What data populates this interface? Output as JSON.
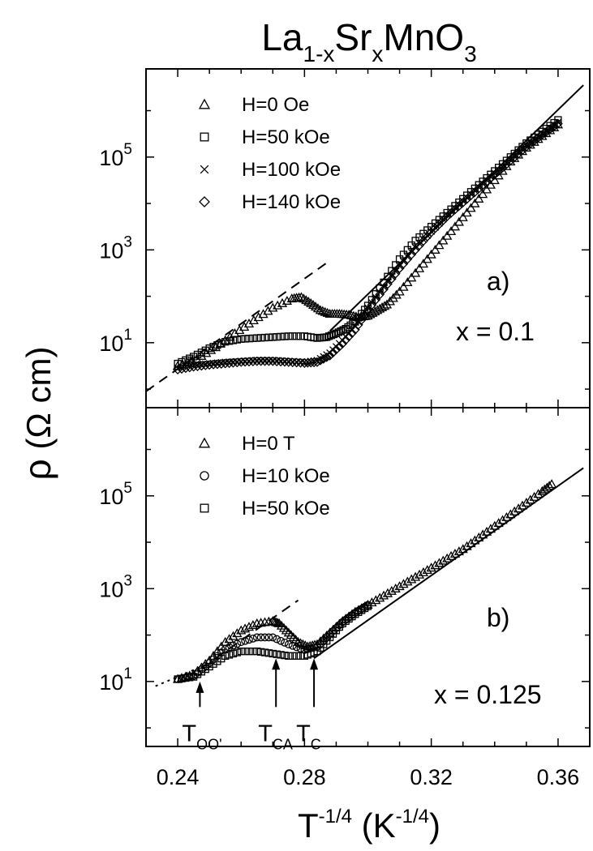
{
  "title": {
    "base": "La",
    "sub1": "1-x",
    "mid": "Sr",
    "sub2": "x",
    "end": "MnO",
    "sub3": "3"
  },
  "xlabel": {
    "base": "T",
    "sup1": "-1/4",
    "mid": " (K",
    "sup2": "-1/4",
    "end": ")"
  },
  "ylabel": {
    "rho": "ρ",
    "unit": " (Ω cm)"
  },
  "chart_data": [
    {
      "type": "scatter",
      "panel": "a",
      "panel_label": "a)",
      "composition_label": "x = 0.1",
      "xlim": [
        0.23,
        0.37
      ],
      "ylim_log10": [
        -0.4,
        6.9
      ],
      "yscale": "log",
      "x_ticks": [
        "0.24",
        "0.28",
        "0.32",
        "0.36"
      ],
      "y_ticks": [
        {
          "base": "10",
          "exp": "1",
          "log10": 1
        },
        {
          "base": "10",
          "exp": "3",
          "log10": 3
        },
        {
          "base": "10",
          "exp": "5",
          "log10": 5
        }
      ],
      "legend_position": "top-left",
      "series": [
        {
          "name": "H=0 Oe",
          "marker": "triangle",
          "x": [
            0.24,
            0.246,
            0.252,
            0.258,
            0.264,
            0.27,
            0.276,
            0.279,
            0.282,
            0.285,
            0.288,
            0.291,
            0.294,
            0.297,
            0.3,
            0.303,
            0.306,
            0.31,
            0.315,
            0.32,
            0.325,
            0.33,
            0.335,
            0.34,
            0.345,
            0.35,
            0.355,
            0.36
          ],
          "log10_y": [
            0.5,
            0.65,
            0.9,
            1.2,
            1.48,
            1.75,
            1.95,
            1.98,
            1.85,
            1.7,
            1.62,
            1.62,
            1.6,
            1.55,
            1.58,
            1.7,
            1.82,
            2.1,
            2.5,
            2.9,
            3.3,
            3.7,
            4.1,
            4.5,
            4.9,
            5.2,
            5.45,
            5.7
          ]
        },
        {
          "name": "H=50 kOe",
          "marker": "square",
          "x": [
            0.24,
            0.245,
            0.25,
            0.255,
            0.26,
            0.265,
            0.27,
            0.275,
            0.28,
            0.284,
            0.287,
            0.29,
            0.293,
            0.296,
            0.3,
            0.305,
            0.31,
            0.315,
            0.32,
            0.325,
            0.33,
            0.335,
            0.34,
            0.345,
            0.35,
            0.355,
            0.36
          ],
          "log10_y": [
            0.55,
            0.7,
            0.88,
            1.02,
            1.08,
            1.1,
            1.12,
            1.14,
            1.14,
            1.1,
            1.12,
            1.2,
            1.3,
            1.45,
            1.8,
            2.3,
            2.8,
            3.2,
            3.5,
            3.8,
            4.1,
            4.4,
            4.7,
            5.0,
            5.3,
            5.55,
            5.8
          ]
        },
        {
          "name": "H=100 kOe",
          "marker": "cross",
          "x": [
            0.24,
            0.245,
            0.25,
            0.255,
            0.26,
            0.265,
            0.27,
            0.275,
            0.28,
            0.284,
            0.288,
            0.292,
            0.296,
            0.3,
            0.305,
            0.31,
            0.315,
            0.32,
            0.325,
            0.33,
            0.335,
            0.34,
            0.345,
            0.35,
            0.355,
            0.36
          ],
          "log10_y": [
            0.45,
            0.52,
            0.55,
            0.58,
            0.6,
            0.62,
            0.62,
            0.6,
            0.58,
            0.62,
            0.78,
            1.05,
            1.35,
            1.75,
            2.2,
            2.65,
            3.05,
            3.4,
            3.75,
            4.05,
            4.35,
            4.65,
            4.95,
            5.25,
            5.5,
            5.75
          ]
        },
        {
          "name": "H=140 kOe",
          "marker": "diamond",
          "x": [
            0.24,
            0.245,
            0.25,
            0.255,
            0.26,
            0.265,
            0.27,
            0.275,
            0.28,
            0.284,
            0.288,
            0.292,
            0.296,
            0.3,
            0.305,
            0.31,
            0.315,
            0.32,
            0.325,
            0.33,
            0.335,
            0.34,
            0.345,
            0.35,
            0.355,
            0.36
          ],
          "log10_y": [
            0.42,
            0.48,
            0.52,
            0.55,
            0.58,
            0.6,
            0.6,
            0.58,
            0.56,
            0.58,
            0.72,
            0.98,
            1.28,
            1.7,
            2.15,
            2.6,
            3.0,
            3.38,
            3.72,
            4.02,
            4.32,
            4.62,
            4.92,
            5.22,
            5.48,
            5.72
          ]
        }
      ],
      "lines": [
        {
          "style": "solid",
          "x": [
            0.288,
            0.368
          ],
          "log10_y": [
            1.25,
            6.55
          ]
        },
        {
          "style": "dashed",
          "x": [
            0.23,
            0.287
          ],
          "log10_y": [
            -0.05,
            2.72
          ]
        }
      ]
    },
    {
      "type": "scatter",
      "panel": "b",
      "panel_label": "b)",
      "composition_label": "x = 0.125",
      "xlim": [
        0.23,
        0.37
      ],
      "ylim_log10": [
        -0.4,
        6.9
      ],
      "yscale": "log",
      "x_ticks": [
        "0.24",
        "0.28",
        "0.32",
        "0.36"
      ],
      "y_ticks": [
        {
          "base": "10",
          "exp": "1",
          "log10": 1
        },
        {
          "base": "10",
          "exp": "3",
          "log10": 3
        },
        {
          "base": "10",
          "exp": "5",
          "log10": 5
        }
      ],
      "legend_position": "top-left",
      "series": [
        {
          "name": "H=0 T",
          "marker": "triangle",
          "x": [
            0.24,
            0.245,
            0.25,
            0.255,
            0.26,
            0.265,
            0.27,
            0.272,
            0.275,
            0.278,
            0.281,
            0.284,
            0.288,
            0.292,
            0.296,
            0.3,
            0.305,
            0.31,
            0.315,
            0.32,
            0.325,
            0.33,
            0.335,
            0.34,
            0.345,
            0.35,
            0.355,
            0.358
          ],
          "log10_y": [
            1.05,
            1.15,
            1.45,
            1.85,
            2.1,
            2.25,
            2.3,
            2.25,
            2.05,
            1.85,
            1.75,
            1.8,
            2.05,
            2.3,
            2.5,
            2.65,
            2.85,
            3.05,
            3.25,
            3.45,
            3.65,
            3.85,
            4.1,
            4.35,
            4.6,
            4.85,
            5.1,
            5.25
          ]
        },
        {
          "name": "H=10 kOe",
          "marker": "circle",
          "x": [
            0.24,
            0.245,
            0.25,
            0.255,
            0.26,
            0.265,
            0.27,
            0.275,
            0.28,
            0.284,
            0.288,
            0.292,
            0.296,
            0.3
          ],
          "log10_y": [
            1.05,
            1.12,
            1.4,
            1.7,
            1.85,
            1.95,
            1.95,
            1.8,
            1.68,
            1.75,
            2.02,
            2.28,
            2.48,
            2.65
          ]
        },
        {
          "name": "H=50 kOe",
          "marker": "square",
          "x": [
            0.24,
            0.245,
            0.25,
            0.255,
            0.26,
            0.265,
            0.27,
            0.275,
            0.28,
            0.284,
            0.288,
            0.292,
            0.296,
            0.3
          ],
          "log10_y": [
            1.05,
            1.1,
            1.32,
            1.55,
            1.65,
            1.65,
            1.6,
            1.55,
            1.55,
            1.65,
            1.95,
            2.25,
            2.45,
            2.62
          ]
        }
      ],
      "lines": [
        {
          "style": "solid",
          "x": [
            0.283,
            0.368
          ],
          "log10_y": [
            1.5,
            5.6
          ]
        },
        {
          "style": "dashed",
          "x": [
            0.252,
            0.278
          ],
          "log10_y": [
            1.5,
            2.75
          ]
        },
        {
          "style": "dotted",
          "x": [
            0.233,
            0.252
          ],
          "log10_y": [
            0.9,
            1.45
          ]
        }
      ],
      "annotations": [
        {
          "base": "T",
          "sub": "OO'",
          "x": 0.247,
          "arrow_log10_top": 1.0,
          "arrow_log10_bottom": 0.45
        },
        {
          "base": "T",
          "sub": "CA",
          "x": 0.271,
          "arrow_log10_top": 1.5,
          "arrow_log10_bottom": 0.45
        },
        {
          "base": "T",
          "sub": "C",
          "x": 0.283,
          "arrow_log10_top": 1.5,
          "arrow_log10_bottom": 0.45
        }
      ]
    }
  ]
}
